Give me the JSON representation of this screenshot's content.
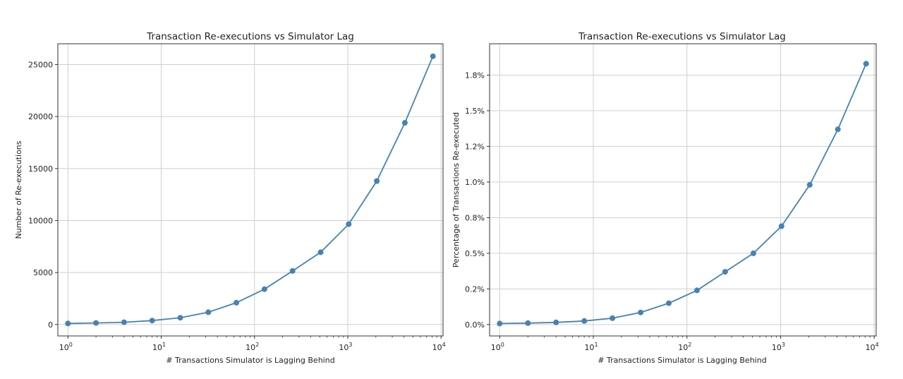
{
  "chart_data": [
    {
      "type": "line",
      "title": "Transaction Re-executions vs Simulator Lag",
      "xlabel": "# Transactions Simulator is Lagging Behind",
      "ylabel": "Number of Re-executions",
      "xscale": "log",
      "xlim": [
        0.78,
        10500
      ],
      "ylim": [
        -1100,
        27000
      ],
      "grid": true,
      "line_color": "#4682b4",
      "x_ticks": [
        {
          "base": "10",
          "exp": "0",
          "value": 1
        },
        {
          "base": "10",
          "exp": "1",
          "value": 10
        },
        {
          "base": "10",
          "exp": "2",
          "value": 100
        },
        {
          "base": "10",
          "exp": "3",
          "value": 1000
        },
        {
          "base": "10",
          "exp": "4",
          "value": 10000
        }
      ],
      "y_ticks": [
        {
          "value": 0,
          "label": "0"
        },
        {
          "value": 5000,
          "label": "5000"
        },
        {
          "value": 10000,
          "label": "10000"
        },
        {
          "value": 15000,
          "label": "15000"
        },
        {
          "value": 20000,
          "label": "20000"
        },
        {
          "value": 25000,
          "label": "25000"
        }
      ],
      "x": [
        1,
        2,
        4,
        8,
        16,
        32,
        64,
        128,
        256,
        512,
        1024,
        2048,
        4096,
        8192
      ],
      "y": [
        100,
        150,
        220,
        380,
        650,
        1180,
        2100,
        3400,
        5150,
        6950,
        9650,
        13800,
        19400,
        25800
      ]
    },
    {
      "type": "line",
      "title": "Transaction Re-executions vs Simulator Lag",
      "xlabel": "# Transactions Simulator is Lagging Behind",
      "ylabel": "Percentage of Transactions Re-executed",
      "xscale": "log",
      "xlim": [
        0.78,
        10500
      ],
      "ylim": [
        -0.08,
        1.97
      ],
      "grid": true,
      "line_color": "#4682b4",
      "x_ticks": [
        {
          "base": "10",
          "exp": "0",
          "value": 1
        },
        {
          "base": "10",
          "exp": "1",
          "value": 10
        },
        {
          "base": "10",
          "exp": "2",
          "value": 100
        },
        {
          "base": "10",
          "exp": "3",
          "value": 1000
        },
        {
          "base": "10",
          "exp": "4",
          "value": 10000
        }
      ],
      "y_ticks": [
        {
          "value": 0,
          "label": "0.0%"
        },
        {
          "value": 0.25,
          "label": "0.2%"
        },
        {
          "value": 0.5,
          "label": "0.5%"
        },
        {
          "value": 0.75,
          "label": "0.8%"
        },
        {
          "value": 1.0,
          "label": "1.0%"
        },
        {
          "value": 1.25,
          "label": "1.2%"
        },
        {
          "value": 1.5,
          "label": "1.5%"
        },
        {
          "value": 1.75,
          "label": "1.8%"
        }
      ],
      "x": [
        1,
        2,
        4,
        8,
        16,
        32,
        64,
        128,
        256,
        512,
        1024,
        2048,
        4096,
        8192
      ],
      "y": [
        0.007,
        0.01,
        0.015,
        0.025,
        0.045,
        0.085,
        0.15,
        0.24,
        0.37,
        0.5,
        0.69,
        0.98,
        1.37,
        1.83
      ]
    }
  ]
}
